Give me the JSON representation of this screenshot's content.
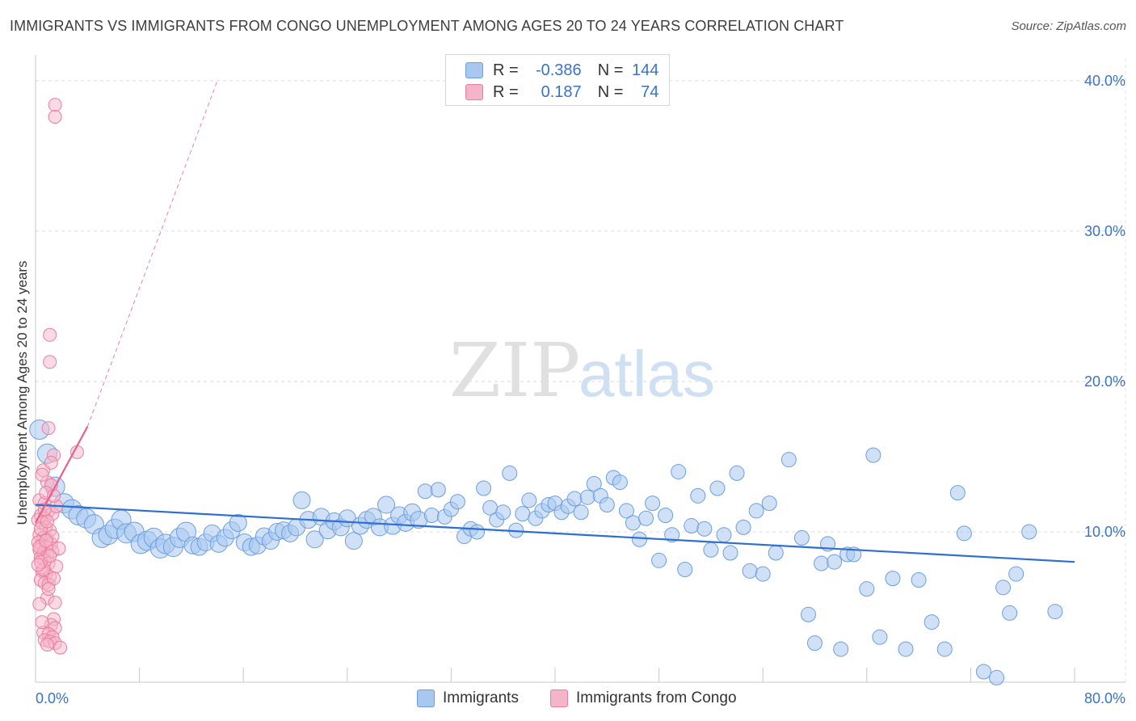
{
  "title": "IMMIGRANTS VS IMMIGRANTS FROM CONGO UNEMPLOYMENT AMONG AGES 20 TO 24 YEARS CORRELATION CHART",
  "source": "Source: ZipAtlas.com",
  "watermark": {
    "zip": "ZIP",
    "atlas": "atlas"
  },
  "stats_legend": {
    "rows": [
      {
        "r_label": "R =",
        "r_value": "-0.386",
        "n_label": "N =",
        "n_value": "144",
        "color": "#a9c8f0"
      },
      {
        "r_label": "R =",
        "r_value": "0.187",
        "n_label": "N =",
        "n_value": "74",
        "color": "#f5b5c8"
      }
    ]
  },
  "colors": {
    "immigrants_fill": "#a9c8f0",
    "immigrants_stroke": "#6b9fe0",
    "immigrants_line": "#2e6fd0",
    "congo_fill": "#f5b5c8",
    "congo_stroke": "#ec7ca0",
    "congo_line": "#e8608a",
    "axis_label": "#3a72c9"
  },
  "chart_data": {
    "type": "scatter",
    "title": "IMMIGRANTS VS IMMIGRANTS FROM CONGO UNEMPLOYMENT AMONG AGES 20 TO 24 YEARS CORRELATION CHART",
    "ylabel": "Unemployment Among Ages 20 to 24 years",
    "xlabel": "",
    "xlim": [
      0,
      80
    ],
    "ylim": [
      0,
      41.5
    ],
    "x_tick_labels": [
      "0.0%",
      "80.0%"
    ],
    "y_ticks": [
      10,
      20,
      30,
      40
    ],
    "y_tick_labels": [
      "10.0%",
      "20.0%",
      "30.0%",
      "40.0%"
    ],
    "grid": true,
    "legend_placement": "bottom-center",
    "series": [
      {
        "name": "Immigrants",
        "r": -0.386,
        "n": 144,
        "trend": {
          "x": [
            0,
            80
          ],
          "y": [
            11.8,
            8.0
          ],
          "dashed_extension": false
        },
        "points": [
          [
            0.3,
            16.8
          ],
          [
            0.9,
            15.2
          ],
          [
            1.5,
            13.0
          ],
          [
            2.2,
            11.9
          ],
          [
            2.8,
            11.5
          ],
          [
            3.3,
            11.1
          ],
          [
            3.9,
            10.9
          ],
          [
            4.5,
            10.5
          ],
          [
            5.1,
            9.6
          ],
          [
            5.6,
            9.8
          ],
          [
            6.1,
            10.2
          ],
          [
            6.6,
            10.8
          ],
          [
            7.0,
            9.9
          ],
          [
            7.6,
            10.0
          ],
          [
            8.1,
            9.2
          ],
          [
            8.6,
            9.4
          ],
          [
            9.1,
            9.6
          ],
          [
            9.6,
            8.9
          ],
          [
            10.0,
            9.2
          ],
          [
            10.6,
            9.0
          ],
          [
            11.1,
            9.6
          ],
          [
            11.6,
            10.0
          ],
          [
            12.1,
            9.1
          ],
          [
            12.6,
            9.0
          ],
          [
            13.1,
            9.3
          ],
          [
            13.6,
            9.9
          ],
          [
            14.1,
            9.2
          ],
          [
            14.6,
            9.6
          ],
          [
            15.1,
            10.1
          ],
          [
            15.6,
            10.6
          ],
          [
            16.1,
            9.3
          ],
          [
            16.6,
            9.0
          ],
          [
            17.1,
            9.1
          ],
          [
            17.6,
            9.7
          ],
          [
            18.1,
            9.4
          ],
          [
            18.6,
            10.0
          ],
          [
            19.1,
            10.1
          ],
          [
            19.6,
            9.9
          ],
          [
            20.1,
            10.3
          ],
          [
            20.5,
            12.1
          ],
          [
            21.0,
            10.8
          ],
          [
            21.5,
            9.5
          ],
          [
            22.0,
            11.0
          ],
          [
            22.5,
            10.1
          ],
          [
            23.0,
            10.7
          ],
          [
            23.5,
            10.3
          ],
          [
            24.0,
            10.9
          ],
          [
            24.5,
            9.4
          ],
          [
            25.0,
            10.4
          ],
          [
            25.5,
            10.8
          ],
          [
            26.0,
            11.0
          ],
          [
            26.5,
            10.3
          ],
          [
            27.0,
            11.8
          ],
          [
            27.5,
            10.4
          ],
          [
            28.0,
            11.1
          ],
          [
            28.5,
            10.6
          ],
          [
            29.0,
            11.3
          ],
          [
            29.5,
            10.8
          ],
          [
            30.0,
            12.7
          ],
          [
            30.5,
            11.1
          ],
          [
            31.0,
            12.8
          ],
          [
            31.5,
            11.0
          ],
          [
            32.0,
            11.5
          ],
          [
            32.5,
            12.0
          ],
          [
            33.0,
            9.7
          ],
          [
            33.5,
            10.2
          ],
          [
            34.0,
            10.0
          ],
          [
            34.5,
            12.9
          ],
          [
            35.0,
            11.6
          ],
          [
            35.5,
            10.8
          ],
          [
            36.0,
            11.3
          ],
          [
            36.5,
            13.9
          ],
          [
            37.0,
            10.1
          ],
          [
            37.5,
            11.2
          ],
          [
            38.0,
            12.1
          ],
          [
            38.5,
            10.9
          ],
          [
            39.0,
            11.4
          ],
          [
            39.5,
            11.8
          ],
          [
            40.0,
            11.9
          ],
          [
            40.5,
            11.3
          ],
          [
            41.0,
            11.7
          ],
          [
            41.5,
            12.2
          ],
          [
            42.0,
            11.3
          ],
          [
            42.5,
            12.3
          ],
          [
            43.0,
            13.2
          ],
          [
            43.5,
            12.4
          ],
          [
            44.0,
            11.8
          ],
          [
            44.5,
            13.6
          ],
          [
            45.0,
            13.3
          ],
          [
            45.5,
            11.4
          ],
          [
            46.0,
            10.6
          ],
          [
            46.5,
            9.5
          ],
          [
            47.0,
            10.9
          ],
          [
            47.5,
            11.9
          ],
          [
            48.0,
            8.1
          ],
          [
            48.5,
            11.1
          ],
          [
            49.0,
            9.8
          ],
          [
            49.5,
            14.0
          ],
          [
            50.0,
            7.5
          ],
          [
            50.5,
            10.4
          ],
          [
            51.0,
            12.4
          ],
          [
            51.5,
            10.2
          ],
          [
            52.0,
            8.8
          ],
          [
            52.5,
            12.9
          ],
          [
            53.0,
            9.8
          ],
          [
            53.5,
            8.6
          ],
          [
            54.0,
            13.9
          ],
          [
            54.5,
            10.3
          ],
          [
            55.0,
            7.4
          ],
          [
            55.5,
            11.4
          ],
          [
            56.0,
            7.2
          ],
          [
            56.5,
            11.9
          ],
          [
            57.0,
            8.6
          ],
          [
            58.0,
            14.8
          ],
          [
            59.0,
            9.6
          ],
          [
            59.5,
            4.5
          ],
          [
            60.0,
            2.6
          ],
          [
            60.5,
            7.9
          ],
          [
            61.0,
            9.2
          ],
          [
            61.5,
            8.0
          ],
          [
            62.0,
            2.2
          ],
          [
            62.5,
            8.5
          ],
          [
            63.0,
            8.5
          ],
          [
            64.0,
            6.2
          ],
          [
            64.5,
            15.1
          ],
          [
            65.0,
            3.0
          ],
          [
            66.0,
            6.9
          ],
          [
            67.0,
            2.2
          ],
          [
            68.0,
            6.8
          ],
          [
            69.0,
            4.0
          ],
          [
            70.0,
            2.2
          ],
          [
            71.0,
            12.6
          ],
          [
            71.5,
            9.9
          ],
          [
            73.0,
            0.7
          ],
          [
            74.0,
            0.3
          ],
          [
            74.5,
            6.3
          ],
          [
            75.0,
            4.6
          ],
          [
            75.5,
            7.2
          ],
          [
            76.5,
            10.0
          ],
          [
            78.5,
            4.7
          ]
        ]
      },
      {
        "name": "Immigrants from Congo",
        "r": 0.187,
        "n": 74,
        "trend": {
          "x": [
            0,
            4
          ],
          "y": [
            10.6,
            17.0
          ],
          "dashed_extension": true,
          "dashed_to": [
            14.0,
            40.0
          ]
        },
        "points": [
          [
            1.5,
            38.4
          ],
          [
            1.5,
            37.6
          ],
          [
            1.1,
            23.1
          ],
          [
            1.1,
            21.3
          ],
          [
            1.0,
            16.9
          ],
          [
            3.2,
            15.3
          ],
          [
            1.4,
            15.1
          ],
          [
            0.6,
            14.1
          ],
          [
            0.9,
            13.3
          ],
          [
            1.2,
            13.1
          ],
          [
            0.3,
            12.1
          ],
          [
            0.7,
            11.9
          ],
          [
            1.0,
            11.4
          ],
          [
            0.4,
            11.1
          ],
          [
            0.7,
            10.9
          ],
          [
            1.3,
            11.2
          ],
          [
            0.2,
            10.8
          ],
          [
            0.5,
            10.6
          ],
          [
            0.8,
            10.3
          ],
          [
            1.1,
            10.1
          ],
          [
            0.3,
            9.8
          ],
          [
            0.6,
            9.6
          ],
          [
            0.9,
            9.5
          ],
          [
            0.2,
            9.3
          ],
          [
            0.5,
            9.1
          ],
          [
            0.8,
            9.0
          ],
          [
            1.2,
            9.2
          ],
          [
            0.3,
            8.8
          ],
          [
            0.6,
            8.6
          ],
          [
            0.9,
            8.5
          ],
          [
            1.3,
            8.7
          ],
          [
            0.4,
            8.3
          ],
          [
            0.7,
            8.1
          ],
          [
            1.0,
            7.9
          ],
          [
            1.6,
            7.7
          ],
          [
            0.5,
            7.4
          ],
          [
            0.8,
            7.2
          ],
          [
            1.1,
            7.0
          ],
          [
            0.4,
            6.8
          ],
          [
            0.7,
            6.6
          ],
          [
            1.0,
            6.5
          ],
          [
            1.4,
            6.9
          ],
          [
            0.9,
            5.6
          ],
          [
            1.5,
            5.3
          ],
          [
            0.3,
            5.2
          ],
          [
            1.4,
            4.2
          ],
          [
            1.2,
            3.8
          ],
          [
            1.5,
            3.6
          ],
          [
            0.6,
            3.3
          ],
          [
            1.0,
            3.2
          ],
          [
            1.3,
            3.0
          ],
          [
            0.7,
            2.8
          ],
          [
            1.1,
            2.7
          ],
          [
            1.5,
            2.6
          ],
          [
            0.9,
            2.5
          ],
          [
            1.9,
            2.3
          ],
          [
            0.4,
            10.2
          ],
          [
            0.8,
            12.6
          ],
          [
            1.2,
            14.6
          ],
          [
            0.5,
            13.8
          ],
          [
            1.6,
            11.7
          ],
          [
            0.3,
            9.0
          ],
          [
            0.6,
            7.5
          ],
          [
            1.8,
            8.9
          ],
          [
            0.9,
            10.7
          ],
          [
            0.4,
            8.0
          ],
          [
            1.3,
            9.7
          ],
          [
            0.7,
            11.5
          ],
          [
            1.0,
            6.2
          ],
          [
            0.5,
            4.0
          ],
          [
            1.4,
            12.4
          ],
          [
            0.2,
            7.8
          ],
          [
            0.8,
            9.4
          ],
          [
            1.1,
            8.4
          ]
        ]
      }
    ]
  },
  "bottom_legend": [
    {
      "label": "Immigrants",
      "color": "#a9c8f0"
    },
    {
      "label": "Immigrants from Congo",
      "color": "#f5b5c8"
    }
  ]
}
